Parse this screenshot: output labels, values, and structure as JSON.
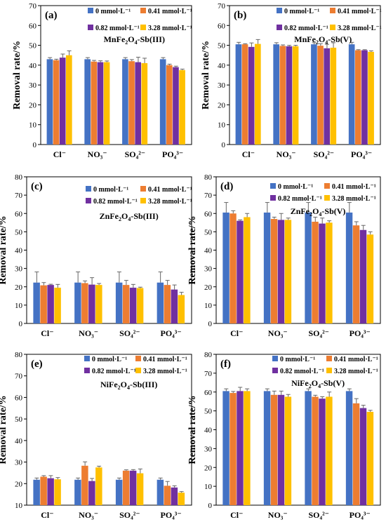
{
  "figure": {
    "colors": [
      "#4472C4",
      "#ED7D31",
      "#7030A0",
      "#FFC000"
    ]
  },
  "chart_data": [
    {
      "type": "bar",
      "panel_label": "(a)",
      "title": "MnFe2O4-Sb(III)",
      "title_parts": [
        "MnFe",
        "2",
        "O",
        "4",
        "-Sb(III)"
      ],
      "ylabel": "Removal rate/%",
      "ylim": [
        0,
        70
      ],
      "yticks": [
        0,
        10,
        20,
        30,
        40,
        50,
        60,
        70
      ],
      "categories": [
        "Cl⁻",
        "NO₃⁻",
        "SO₄²⁻",
        "PO₄³⁻"
      ],
      "legend": [
        "0 mmol·L⁻¹",
        "0.41 mmol·L⁻¹",
        "0.82 mmol·L⁻¹",
        "3.28 mmol·L⁻¹"
      ],
      "series": [
        {
          "name": "0 mmol·L⁻¹",
          "values": [
            43.0,
            43.0,
            43.0,
            43.0
          ],
          "errors": [
            0.8,
            0.8,
            0.8,
            0.8
          ]
        },
        {
          "name": "0.41 mmol·L⁻¹",
          "values": [
            42.5,
            41.8,
            42.0,
            40.0
          ],
          "errors": [
            0.5,
            0.6,
            0.8,
            0.5
          ]
        },
        {
          "name": "0.82 mmol·L⁻¹",
          "values": [
            43.8,
            41.5,
            41.5,
            39.0
          ],
          "errors": [
            1.8,
            0.7,
            2.5,
            0.5
          ]
        },
        {
          "name": "3.28 mmol·L⁻¹",
          "values": [
            45.0,
            41.5,
            41.0,
            37.5
          ],
          "errors": [
            2.2,
            0.6,
            2.5,
            0.5
          ]
        }
      ]
    },
    {
      "type": "bar",
      "panel_label": "(b)",
      "title": "MnFe2O4-Sb(V)",
      "title_parts": [
        "MnFe",
        "2",
        "O",
        "4",
        "-Sb(V)"
      ],
      "ylabel": "Removal rate/%",
      "ylim": [
        0,
        70
      ],
      "yticks": [
        0,
        10,
        20,
        30,
        40,
        50,
        60,
        70
      ],
      "categories": [
        "Cl⁻",
        "NO₃⁻",
        "SO₄²⁻",
        "PO₄³⁻"
      ],
      "legend": [
        "0 mmol·L⁻¹",
        "0.41 mmol·L⁻¹",
        "0.82 mmol·L⁻¹",
        "3.28 mmol·L⁻¹"
      ],
      "series": [
        {
          "name": "0 mmol·L⁻¹",
          "values": [
            50.5,
            50.5,
            50.5,
            50.5
          ],
          "errors": [
            1.0,
            0.8,
            0.8,
            1.0
          ]
        },
        {
          "name": "0.41 mmol·L⁻¹",
          "values": [
            50.5,
            49.7,
            49.8,
            47.5
          ],
          "errors": [
            0.3,
            0.5,
            1.0,
            0.3
          ]
        },
        {
          "name": "0.82 mmol·L⁻¹",
          "values": [
            49.2,
            49.5,
            48.5,
            47.5
          ],
          "errors": [
            2.0,
            0.5,
            2.0,
            0.3
          ]
        },
        {
          "name": "3.28 mmol·L⁻¹",
          "values": [
            50.7,
            49.5,
            48.8,
            46.7
          ],
          "errors": [
            2.2,
            0.5,
            2.5,
            0.5
          ]
        }
      ]
    },
    {
      "type": "bar",
      "panel_label": "(c)",
      "title": "ZnFe2O4-Sb(III)",
      "title_parts": [
        "ZnFe",
        "2",
        "O",
        "4",
        "-Sb(III)"
      ],
      "ylabel": "Removal rate/%",
      "ylim": [
        0,
        80
      ],
      "yticks": [
        0,
        10,
        20,
        30,
        40,
        50,
        60,
        70,
        80
      ],
      "categories": [
        "Cl⁻",
        "NO₃⁻",
        "SO₄²⁻",
        "PO₄³⁻"
      ],
      "legend": [
        "0 mmol·L⁻¹",
        "0.41 mmol·L⁻¹",
        "0.82 mmol·L⁻¹",
        "3.28 mmol·L⁻¹"
      ],
      "series": [
        {
          "name": "0 mmol·L⁻¹",
          "values": [
            22.3,
            22.3,
            22.3,
            22.3
          ],
          "errors": [
            5.8,
            5.8,
            5.8,
            5.8
          ]
        },
        {
          "name": "0.41 mmol·L⁻¹",
          "values": [
            20.8,
            22.0,
            21.0,
            21.0
          ],
          "errors": [
            1.5,
            1.2,
            2.5,
            2.5
          ]
        },
        {
          "name": "0.82 mmol·L⁻¹",
          "values": [
            21.0,
            21.2,
            19.5,
            18.5
          ],
          "errors": [
            0.4,
            3.8,
            1.8,
            2.5
          ]
        },
        {
          "name": "3.28 mmol·L⁻¹",
          "values": [
            19.5,
            21.0,
            19.3,
            15.5
          ],
          "errors": [
            1.8,
            0.8,
            0.5,
            1.5
          ]
        }
      ]
    },
    {
      "type": "bar",
      "panel_label": "(d)",
      "title": "ZnFe2O4-Sb(V)",
      "title_parts": [
        "ZnFe",
        "2",
        "O",
        "4",
        "-Sb(V)"
      ],
      "ylabel": "Removal rate/%",
      "ylim": [
        0,
        80
      ],
      "yticks": [
        0,
        10,
        20,
        30,
        40,
        50,
        60,
        70,
        80
      ],
      "categories": [
        "Cl⁻",
        "NO₃⁻",
        "SO₄²⁻",
        "PO₄³⁻"
      ],
      "legend": [
        "0 mmol·L⁻¹",
        "0.41 mmol·L⁻¹",
        "0.82 mmol·L⁻¹",
        "3.28 mmol·L⁻¹"
      ],
      "series": [
        {
          "name": "0 mmol·L⁻¹",
          "values": [
            60.5,
            60.5,
            60.5,
            60.5
          ],
          "errors": [
            5.5,
            5.5,
            5.5,
            5.5
          ]
        },
        {
          "name": "0.41 mmol·L⁻¹",
          "values": [
            60.0,
            57.0,
            55.5,
            53.5
          ],
          "errors": [
            1.5,
            1.0,
            2.5,
            2.0
          ]
        },
        {
          "name": "0.82 mmol·L⁻¹",
          "values": [
            56.0,
            56.5,
            54.5,
            51.0
          ],
          "errors": [
            0.5,
            3.5,
            3.0,
            2.5
          ]
        },
        {
          "name": "3.28 mmol·L⁻¹",
          "values": [
            58.0,
            56.5,
            55.0,
            48.5
          ],
          "errors": [
            2.0,
            1.0,
            1.0,
            1.5
          ]
        }
      ]
    },
    {
      "type": "bar",
      "panel_label": "(e)",
      "title": "NiFe2O4-Sb(III)",
      "title_parts": [
        "NiFe",
        "2",
        "O",
        "4",
        "-Sb(III)"
      ],
      "ylabel": "Removal rate/%",
      "ylim": [
        10,
        80
      ],
      "yticks": [
        10,
        20,
        30,
        40,
        50,
        60,
        70,
        80
      ],
      "categories": [
        "Cl⁻",
        "NO₃⁻",
        "SO₄²⁻",
        "PO₄³⁻"
      ],
      "legend": [
        "0 mmol·L⁻¹",
        "0.41 mmol·L⁻¹",
        "0.82 mmol·L⁻¹",
        "3.28 mmol·L⁻¹"
      ],
      "series": [
        {
          "name": "0 mmol·L⁻¹",
          "values": [
            21.8,
            21.8,
            21.8,
            21.8
          ],
          "errors": [
            0.8,
            0.8,
            0.8,
            0.8
          ]
        },
        {
          "name": "0.41 mmol·L⁻¹",
          "values": [
            23.2,
            28.3,
            26.0,
            19.0
          ],
          "errors": [
            0.5,
            1.8,
            0.4,
            2.0
          ]
        },
        {
          "name": "0.82 mmol·L⁻¹",
          "values": [
            22.5,
            21.2,
            26.0,
            18.2
          ],
          "errors": [
            1.2,
            1.2,
            0.5,
            0.8
          ]
        },
        {
          "name": "3.28 mmol·L⁻¹",
          "values": [
            22.0,
            27.5,
            24.8,
            15.8
          ],
          "errors": [
            0.8,
            0.6,
            2.0,
            0.5
          ]
        }
      ]
    },
    {
      "type": "bar",
      "panel_label": "(f)",
      "title": "NiFe2O4-Sb(V)",
      "title_parts": [
        "NiFe",
        "2",
        "O",
        "4",
        "-Sb(V)"
      ],
      "ylabel": "Removal rate/%",
      "ylim": [
        0,
        80
      ],
      "yticks": [
        0,
        10,
        20,
        30,
        40,
        50,
        60,
        70,
        80
      ],
      "categories": [
        "Cl⁻",
        "NO₃⁻",
        "SO₄²⁻",
        "PO₄³⁻"
      ],
      "legend": [
        "0 mmol·L⁻¹",
        "0.41 mmol·L⁻¹",
        "0.82 mmol·L⁻¹",
        "3.28 mmol·L⁻¹"
      ],
      "series": [
        {
          "name": "0 mmol·L⁻¹",
          "values": [
            60.5,
            60.5,
            60.5,
            60.5
          ],
          "errors": [
            1.2,
            1.2,
            1.2,
            1.2
          ]
        },
        {
          "name": "0.41 mmol·L⁻¹",
          "values": [
            59.5,
            58.5,
            57.5,
            54.0
          ],
          "errors": [
            0.8,
            2.0,
            0.8,
            2.5
          ]
        },
        {
          "name": "0.82 mmol·L⁻¹",
          "values": [
            60.5,
            58.5,
            56.5,
            51.5
          ],
          "errors": [
            2.0,
            2.0,
            1.0,
            1.5
          ]
        },
        {
          "name": "3.28 mmol·L⁻¹",
          "values": [
            60.5,
            57.5,
            57.5,
            49.5
          ],
          "errors": [
            1.2,
            1.2,
            2.5,
            0.8
          ]
        }
      ]
    }
  ]
}
